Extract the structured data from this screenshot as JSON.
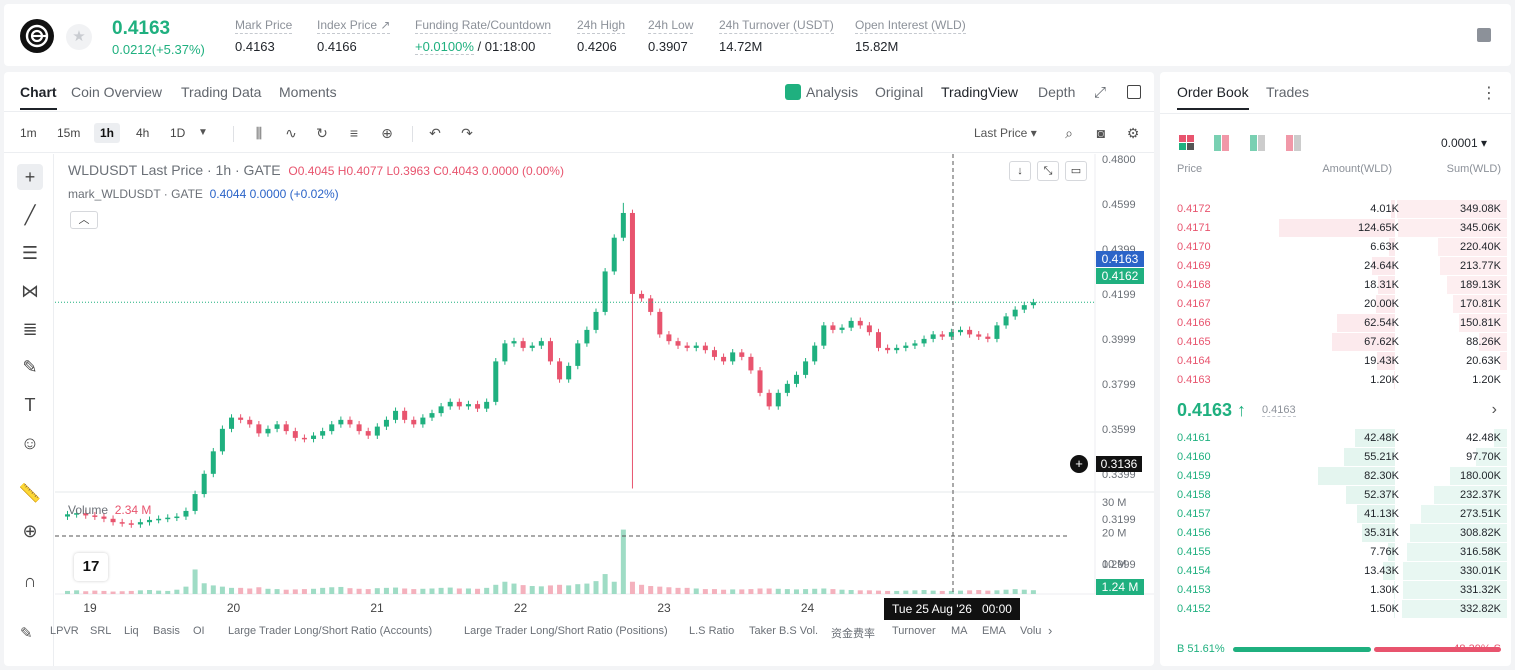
{
  "header": {
    "last_price": "0.4163",
    "change": "0.0212(+5.37%)",
    "stats": [
      {
        "label": "Mark Price",
        "value": "0.4163"
      },
      {
        "label": "Index Price ↗",
        "value": "0.4166"
      },
      {
        "label": "Funding Rate/Countdown",
        "value_green": "+0.0100%",
        "value": " / 01:18:00"
      },
      {
        "label": "24h High",
        "value": "0.4206"
      },
      {
        "label": "24h Low",
        "value": "0.3907"
      },
      {
        "label": "24h Turnover (USDT)",
        "value": "14.72M"
      },
      {
        "label": "Open Interest (WLD)",
        "value": "15.82M"
      }
    ]
  },
  "chart_tabs": [
    "Chart",
    "Coin Overview",
    "Trading Data",
    "Moments"
  ],
  "chart_views": [
    "Analysis",
    "Original",
    "TradingView",
    "Depth"
  ],
  "timeframes": [
    "1m",
    "15m",
    "1h",
    "4h",
    "1D"
  ],
  "last_price_dropdown": "Last Price",
  "legend": {
    "title": "WLDUSDT Last Price · 1h · GATE",
    "ohlc": "O0.4045  H0.4077  L0.3963  C0.4043  0.0000 (0.00%)",
    "mark_title": "mark_WLDUSDT · GATE",
    "mark_values": "0.4044  0.0000  (+0.02%)"
  },
  "volume": {
    "label": "Volume",
    "value": "2.34 M"
  },
  "tv_logo": "17",
  "date_tip": {
    "date": "Tue 25 Aug '26",
    "time": "00:00"
  },
  "price_tags": {
    "blue": "0.4163",
    "green": "0.4162",
    "cursor": "0.3136",
    "vol": "1.24 M"
  },
  "indicators": [
    "LPVR",
    "SRL",
    "Liq",
    "Basis",
    "OI",
    "Large Trader Long/Short Ratio (Accounts)",
    "Large Trader Long/Short Ratio (Positions)",
    "L.S Ratio",
    "Taker B.S Vol.",
    "资金费率",
    "Turnover",
    "MA",
    "EMA",
    "Volu"
  ],
  "chart_data": {
    "type": "candlestick",
    "y_axis_ticks": [
      "0.4800",
      "0.4599",
      "0.4399",
      "0.4199",
      "0.3999",
      "0.3799",
      "0.3599",
      "0.3399",
      "0.3199",
      "0.2999"
    ],
    "y_range": [
      0.2999,
      0.48
    ],
    "x_axis_ticks": [
      "19",
      "20",
      "21",
      "22",
      "23",
      "24"
    ],
    "volume_axis_ticks": [
      "30 M",
      "20 M",
      "10 M"
    ],
    "volume_range": [
      0,
      30
    ],
    "close_path": [
      0.322,
      0.3225,
      0.3215,
      0.321,
      0.32,
      0.3185,
      0.318,
      0.3175,
      0.3185,
      0.3195,
      0.32,
      0.3205,
      0.321,
      0.3235,
      0.331,
      0.34,
      0.35,
      0.36,
      0.365,
      0.364,
      0.362,
      0.358,
      0.36,
      0.362,
      0.359,
      0.356,
      0.3555,
      0.357,
      0.359,
      0.362,
      0.364,
      0.362,
      0.359,
      0.357,
      0.361,
      0.364,
      0.368,
      0.364,
      0.362,
      0.365,
      0.367,
      0.37,
      0.372,
      0.37,
      0.371,
      0.369,
      0.372,
      0.39,
      0.398,
      0.399,
      0.396,
      0.397,
      0.399,
      0.39,
      0.382,
      0.388,
      0.398,
      0.404,
      0.412,
      0.43,
      0.445,
      0.456,
      0.42,
      0.418,
      0.412,
      0.402,
      0.399,
      0.397,
      0.396,
      0.397,
      0.395,
      0.392,
      0.39,
      0.394,
      0.392,
      0.386,
      0.376,
      0.37,
      0.376,
      0.38,
      0.384,
      0.39,
      0.397,
      0.406,
      0.404,
      0.405,
      0.408,
      0.406,
      0.403,
      0.396,
      0.395,
      0.396,
      0.397,
      0.398,
      0.4,
      0.402,
      0.401,
      0.403,
      0.404,
      0.402,
      0.401,
      0.4,
      0.406,
      0.41,
      0.413,
      0.415,
      0.4163
    ],
    "volume_path_m": [
      1,
      1.2,
      0.9,
      1.1,
      1,
      0.8,
      0.9,
      1,
      1.2,
      1.3,
      1.1,
      1,
      1.4,
      2.4,
      8,
      3.5,
      2.8,
      2.4,
      2,
      2,
      1.8,
      2.2,
      1.7,
      1.6,
      1.4,
      1.5,
      1.6,
      1.7,
      2,
      2.2,
      2.3,
      1.9,
      1.7,
      1.6,
      1.9,
      2,
      2.1,
      1.8,
      1.6,
      1.7,
      1.8,
      2,
      2.1,
      1.8,
      1.8,
      1.7,
      2,
      3,
      4,
      3.4,
      2.9,
      2.6,
      2.5,
      2.8,
      3,
      2.8,
      3.2,
      3.4,
      4.2,
      6.5,
      4,
      21,
      4,
      3,
      2.6,
      2.4,
      2.2,
      2,
      2,
      1.8,
      1.6,
      1.6,
      1.4,
      1.5,
      1.5,
      1.6,
      1.8,
      1.8,
      1.7,
      1.6,
      1.5,
      1.6,
      1.7,
      1.8,
      1.6,
      1.4,
      1.3,
      1.2,
      1.2,
      1.1,
      1,
      1,
      1.1,
      1.2,
      1.3,
      1.1,
      1,
      1,
      1.1,
      1.2,
      1.3,
      1.1,
      1.2,
      1.4,
      1.6,
      1.4,
      1.24
    ]
  },
  "order_book": {
    "tabs": [
      "Order Book",
      "Trades"
    ],
    "precision": "0.0001",
    "headers": [
      "Price",
      "Amount(WLD)",
      "Sum(WLD)"
    ],
    "asks": [
      {
        "price": "0.4172",
        "amount": "4.01K",
        "sum": "349.08K"
      },
      {
        "price": "0.4171",
        "amount": "124.65K",
        "sum": "345.06K"
      },
      {
        "price": "0.4170",
        "amount": "6.63K",
        "sum": "220.40K"
      },
      {
        "price": "0.4169",
        "amount": "24.64K",
        "sum": "213.77K"
      },
      {
        "price": "0.4168",
        "amount": "18.31K",
        "sum": "189.13K"
      },
      {
        "price": "0.4167",
        "amount": "20.00K",
        "sum": "170.81K"
      },
      {
        "price": "0.4166",
        "amount": "62.54K",
        "sum": "150.81K"
      },
      {
        "price": "0.4165",
        "amount": "67.62K",
        "sum": "88.26K"
      },
      {
        "price": "0.4164",
        "amount": "19.43K",
        "sum": "20.63K"
      },
      {
        "price": "0.4163",
        "amount": "1.20K",
        "sum": "1.20K"
      }
    ],
    "mid_price": "0.4163 ↑",
    "mid_mark": "0.4163",
    "bids": [
      {
        "price": "0.4161",
        "amount": "42.48K",
        "sum": "42.48K"
      },
      {
        "price": "0.4160",
        "amount": "55.21K",
        "sum": "97.70K"
      },
      {
        "price": "0.4159",
        "amount": "82.30K",
        "sum": "180.00K"
      },
      {
        "price": "0.4158",
        "amount": "52.37K",
        "sum": "232.37K"
      },
      {
        "price": "0.4157",
        "amount": "41.13K",
        "sum": "273.51K"
      },
      {
        "price": "0.4156",
        "amount": "35.31K",
        "sum": "308.82K"
      },
      {
        "price": "0.4155",
        "amount": "7.76K",
        "sum": "316.58K"
      },
      {
        "price": "0.4154",
        "amount": "13.43K",
        "sum": "330.01K"
      },
      {
        "price": "0.4153",
        "amount": "1.30K",
        "sum": "331.32K"
      },
      {
        "price": "0.4152",
        "amount": "1.50K",
        "sum": "332.82K"
      }
    ],
    "buy_ratio": "B 51.61%",
    "sell_ratio": "48.39% S",
    "buy_ratio_pct": 51.61,
    "colors": {
      "buy": "#1fb07f",
      "sell": "#e8546e"
    }
  }
}
